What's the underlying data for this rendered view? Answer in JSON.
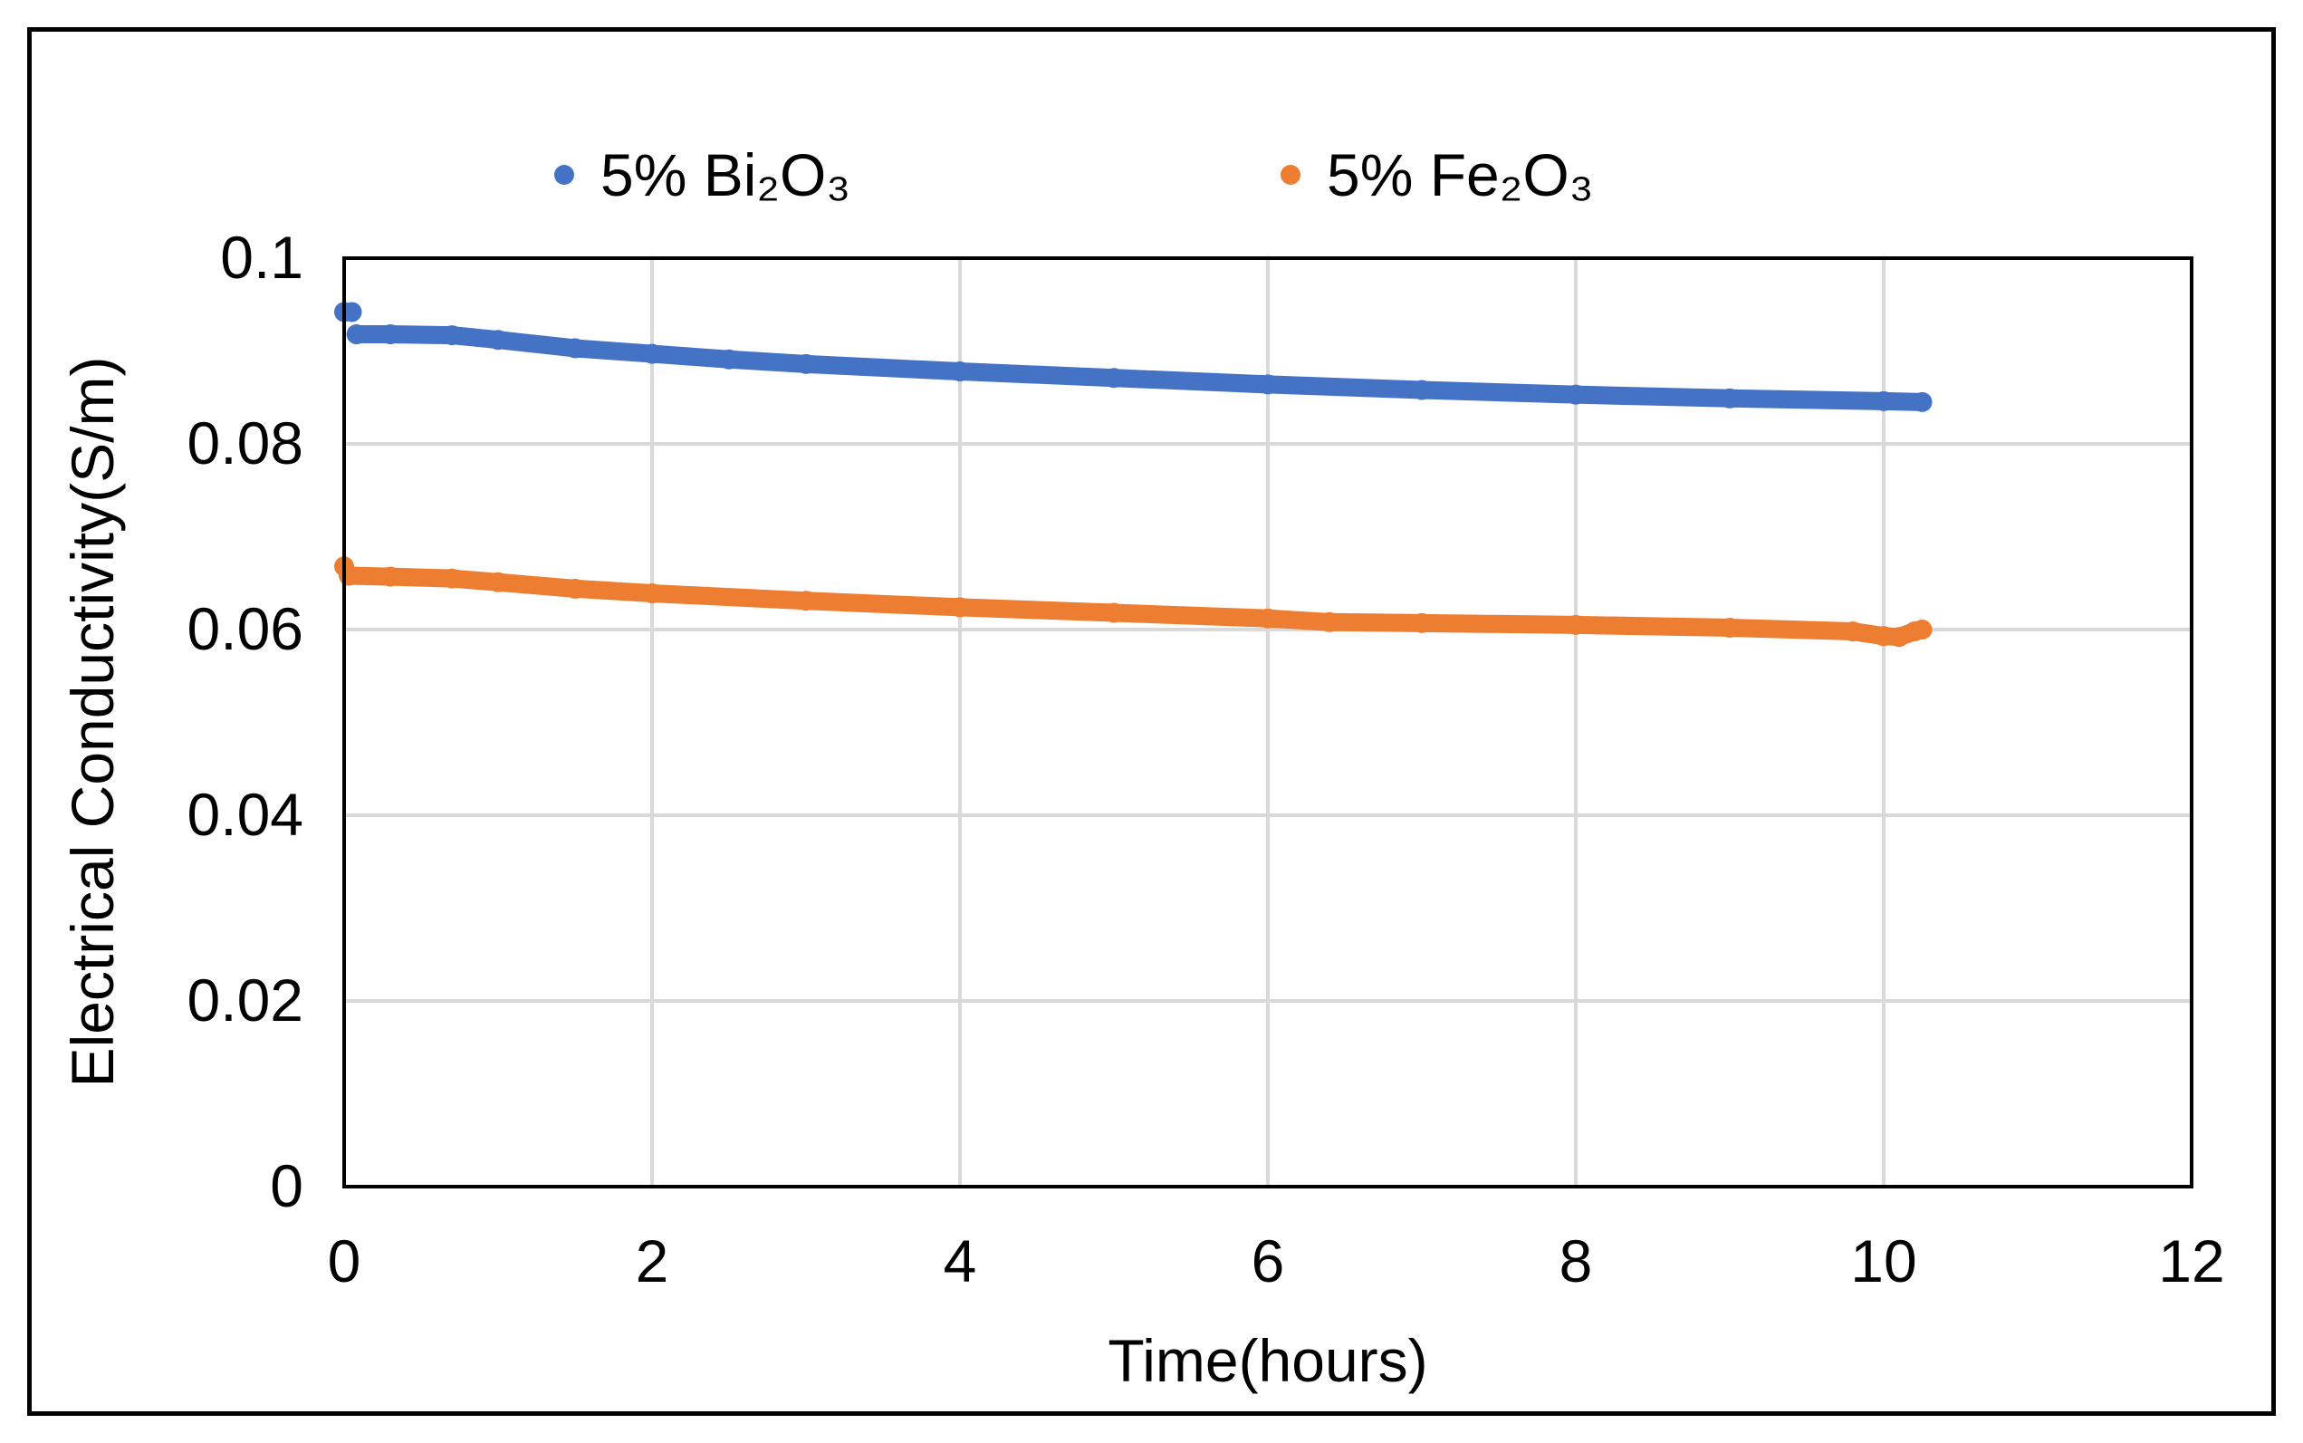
{
  "chart_data": {
    "type": "scatter",
    "title": "",
    "xlabel": "Time(hours)",
    "ylabel": "Electrical Conductivity(S/m)",
    "xlim": [
      0,
      12
    ],
    "ylim": [
      0,
      0.1
    ],
    "xticks": [
      0,
      2,
      4,
      6,
      8,
      10,
      12
    ],
    "xtick_labels": [
      "0",
      "2",
      "4",
      "6",
      "8",
      "10",
      "12"
    ],
    "yticks": [
      0,
      0.02,
      0.04,
      0.06,
      0.08,
      0.1
    ],
    "ytick_labels": [
      "0",
      "0.02",
      "0.04",
      "0.06",
      "0.08",
      "0.1"
    ],
    "grid": true,
    "legend_position": "top",
    "series": [
      {
        "name": "5% Bi₂O₃",
        "color": "#4472C4",
        "points": [
          [
            0.0,
            0.0942
          ],
          [
            0.05,
            0.0942
          ],
          [
            0.08,
            0.0918
          ],
          [
            0.3,
            0.0918
          ],
          [
            0.7,
            0.0917
          ],
          [
            1.0,
            0.0912
          ],
          [
            1.5,
            0.0903
          ],
          [
            2.0,
            0.0897
          ],
          [
            2.5,
            0.0891
          ],
          [
            3.0,
            0.0886
          ],
          [
            4.0,
            0.0878
          ],
          [
            5.0,
            0.0871
          ],
          [
            6.0,
            0.0864
          ],
          [
            7.0,
            0.0858
          ],
          [
            8.0,
            0.0853
          ],
          [
            9.0,
            0.0849
          ],
          [
            10.0,
            0.0846
          ],
          [
            10.25,
            0.0845
          ]
        ]
      },
      {
        "name": "5% Fe₂O₃",
        "color": "#ED7D31",
        "points": [
          [
            0.0,
            0.0668
          ],
          [
            0.03,
            0.0658
          ],
          [
            0.3,
            0.0657
          ],
          [
            0.7,
            0.0655
          ],
          [
            1.0,
            0.0651
          ],
          [
            1.5,
            0.0644
          ],
          [
            2.0,
            0.0639
          ],
          [
            3.0,
            0.0631
          ],
          [
            4.0,
            0.0624
          ],
          [
            5.0,
            0.0618
          ],
          [
            6.0,
            0.0612
          ],
          [
            6.4,
            0.0608
          ],
          [
            7.0,
            0.0607
          ],
          [
            8.0,
            0.0605
          ],
          [
            9.0,
            0.0602
          ],
          [
            9.8,
            0.0598
          ],
          [
            10.0,
            0.0593
          ],
          [
            10.1,
            0.0592
          ],
          [
            10.2,
            0.0598
          ],
          [
            10.25,
            0.06
          ]
        ]
      }
    ]
  }
}
